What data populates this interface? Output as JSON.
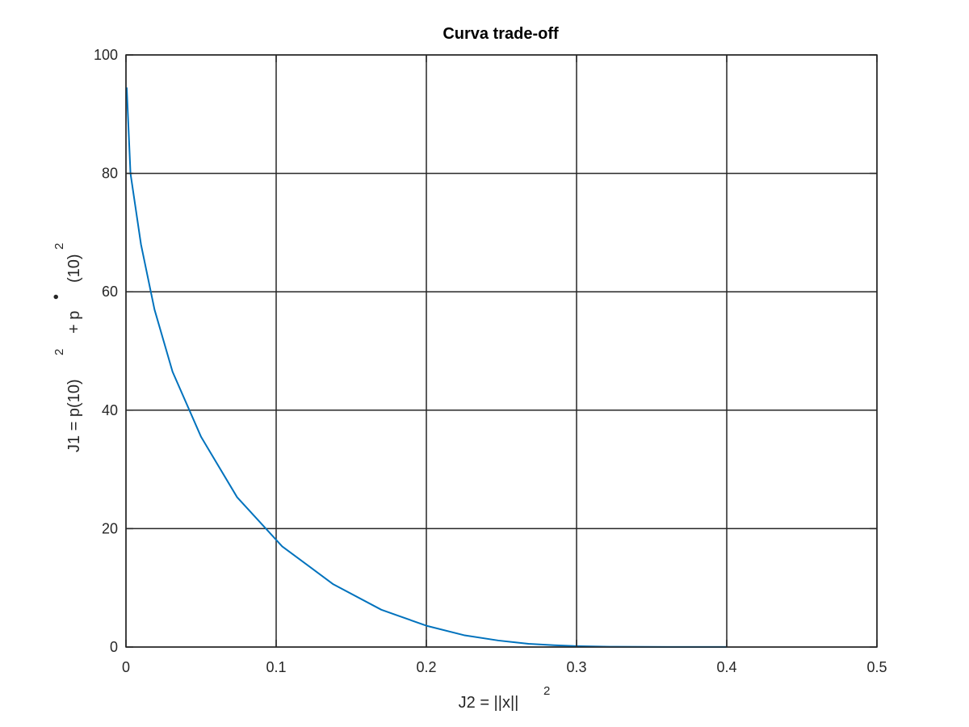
{
  "chart_data": {
    "type": "line",
    "title": "Curva trade-off",
    "xlabel": {
      "text": "J2 = ||x||",
      "superscript": "2"
    },
    "ylabel": {
      "part1": "J1 = p(10)",
      "sup1": "2",
      "part2": "+ p",
      "dot": "•",
      "part3": "(10)",
      "sup2": "2"
    },
    "xlim": [
      0,
      0.5
    ],
    "ylim": [
      0,
      100
    ],
    "xticks": [
      "0",
      "0.1",
      "0.2",
      "0.3",
      "0.4",
      "0.5"
    ],
    "yticks": [
      "0",
      "20",
      "40",
      "60",
      "80",
      "100"
    ],
    "grid": true,
    "series": [
      {
        "color": "#0072bd",
        "x": [
          0.0005,
          0.003,
          0.01,
          0.019,
          0.031,
          0.05,
          0.074,
          0.104,
          0.138,
          0.17,
          0.2,
          0.225,
          0.248,
          0.268,
          0.285,
          0.3,
          0.322,
          0.36,
          0.4
        ],
        "y": [
          94.5,
          80,
          68,
          57,
          46.5,
          35.5,
          25.3,
          17,
          10.6,
          6.3,
          3.6,
          2,
          1.1,
          0.55,
          0.3,
          0.15,
          0.05,
          0.02,
          0.01
        ]
      }
    ]
  }
}
